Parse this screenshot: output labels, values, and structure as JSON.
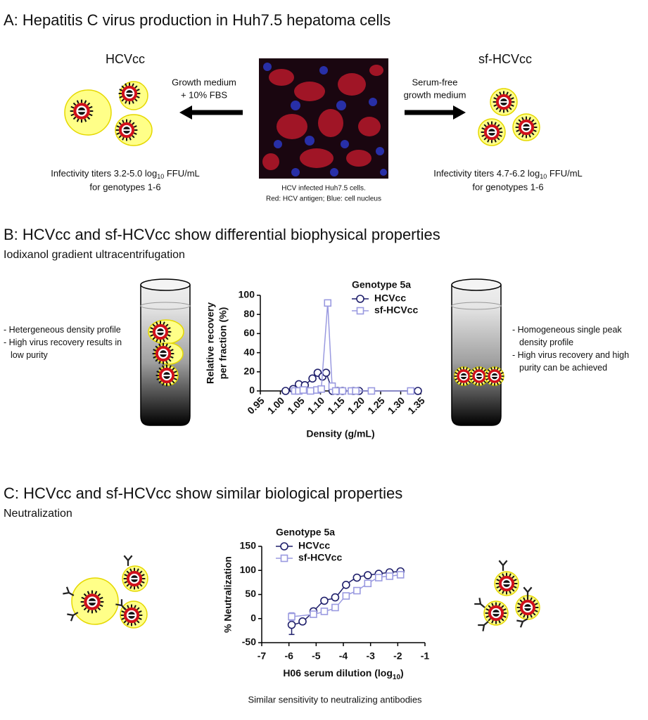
{
  "section_a": {
    "title": "A: Hepatitis C virus production in Huh7.5 hepatoma cells",
    "left_label": "HCVcc",
    "right_label": "sf-HCVcc",
    "left_medium": [
      "Growth medium",
      "+ 10% FBS"
    ],
    "right_medium": [
      "Serum-free",
      "growth medium"
    ],
    "image_caption": [
      "HCV infected Huh7.5 cells.",
      "Red: HCV antigen; Blue: cell nucleus"
    ],
    "left_titer": {
      "pre": "Infectivity titers 3.2-5.0 log",
      "sub": "10",
      "post": " FFU/mL",
      "line2": "for genotypes 1-6"
    },
    "right_titer": {
      "pre": "Infectivity titers 4.7-6.2 log",
      "sub": "10",
      "post": " FFU/mL",
      "line2": "for genotypes 1-6"
    }
  },
  "section_b": {
    "title": "B: HCVcc and sf-HCVcc show differential biophysical properties",
    "subtitle": "Iodixanol gradient ultracentrifugation",
    "left_notes": [
      "- Hetergeneous density profile",
      "- High virus recovery results in low purity"
    ],
    "right_notes": [
      "- Homogeneous single peak density profile",
      "- High virus recovery and high purity can be achieved"
    ]
  },
  "section_c": {
    "title": "C: HCVcc and sf-HCVcc show similar biological properties",
    "subtitle": "Neutralization",
    "caption": "Similar sensitivity to neutralizing antibodies"
  },
  "chart_data": [
    {
      "type": "line",
      "title": "Genotype 5a",
      "ylabel": [
        "Relative recovery",
        "per fraction (%)"
      ],
      "xlabel": "Density (g/mL)",
      "xlim": [
        0.95,
        1.35
      ],
      "xticks": [
        0.95,
        {
          "value": 1,
          "label": "1.00"
        },
        1.05,
        {
          "value": 1.1,
          "label": "1.10"
        },
        1.15,
        {
          "value": 1.2,
          "label": "1.20"
        },
        1.25,
        {
          "value": 1.3,
          "label": "1.30"
        },
        1.35
      ],
      "ylim": [
        0,
        100
      ],
      "yticks": [
        0,
        20,
        40,
        60,
        80,
        100
      ],
      "series": [
        {
          "name": "HCVcc",
          "color": "#1f1f6b",
          "marker": "circle",
          "x": [
            1.013,
            1.032,
            1.046,
            1.061,
            1.08,
            1.093,
            1.105,
            1.114,
            1.13,
            1.143,
            1.155,
            1.182,
            1.196,
            1.343
          ],
          "values": [
            0,
            2,
            7,
            6,
            13,
            19,
            15,
            19,
            0,
            0,
            0,
            0,
            0,
            0
          ]
        },
        {
          "name": "sf-HCVcc",
          "color": "#9a9ae0",
          "marker": "square",
          "x": [
            1.036,
            1.046,
            1.057,
            1.075,
            1.091,
            1.102,
            1.118,
            1.129,
            1.138,
            1.155,
            1.177,
            1.188,
            1.227,
            1.325
          ],
          "values": [
            0,
            0,
            1,
            0,
            1,
            2,
            92,
            5,
            0,
            0,
            0,
            0,
            0,
            0
          ]
        }
      ]
    },
    {
      "type": "line",
      "title": "Genotype 5a",
      "curve": "smooth",
      "ylabel": "% Neutralization",
      "xlabel": {
        "pre": "H06 serum dilution (log",
        "sub": "10",
        "post": ")"
      },
      "xlim": [
        -7,
        -1
      ],
      "xticks": [
        -7,
        -6,
        -5,
        -4,
        -3,
        -2,
        -1
      ],
      "ylim": [
        -50,
        150
      ],
      "yticks": [
        -50,
        0,
        50,
        100,
        150
      ],
      "series": [
        {
          "name": "HCVcc",
          "color": "#1f1f6b",
          "marker": "circle",
          "x": [
            -5.9,
            -5.5,
            -5.1,
            -4.7,
            -4.3,
            -3.9,
            -3.5,
            -3.1,
            -2.7,
            -2.3,
            -1.9
          ],
          "values": [
            -13,
            -6,
            15,
            37,
            44,
            70,
            85,
            90,
            93,
            96,
            98
          ],
          "errors": [
            20,
            5,
            6,
            null,
            null,
            null,
            null,
            null,
            null,
            null,
            null
          ]
        },
        {
          "name": "sf-HCVcc",
          "color": "#9a9ae0",
          "marker": "square",
          "x": [
            -5.9,
            -5.1,
            -4.7,
            -4.3,
            -3.9,
            -3.5,
            -3.1,
            -2.7,
            -2.3,
            -1.9
          ],
          "values": [
            4,
            9,
            15,
            23,
            47,
            58,
            73,
            85,
            88,
            91
          ],
          "errors": [
            8,
            null,
            null,
            null,
            null,
            null,
            null,
            null,
            null,
            null
          ]
        }
      ]
    }
  ]
}
